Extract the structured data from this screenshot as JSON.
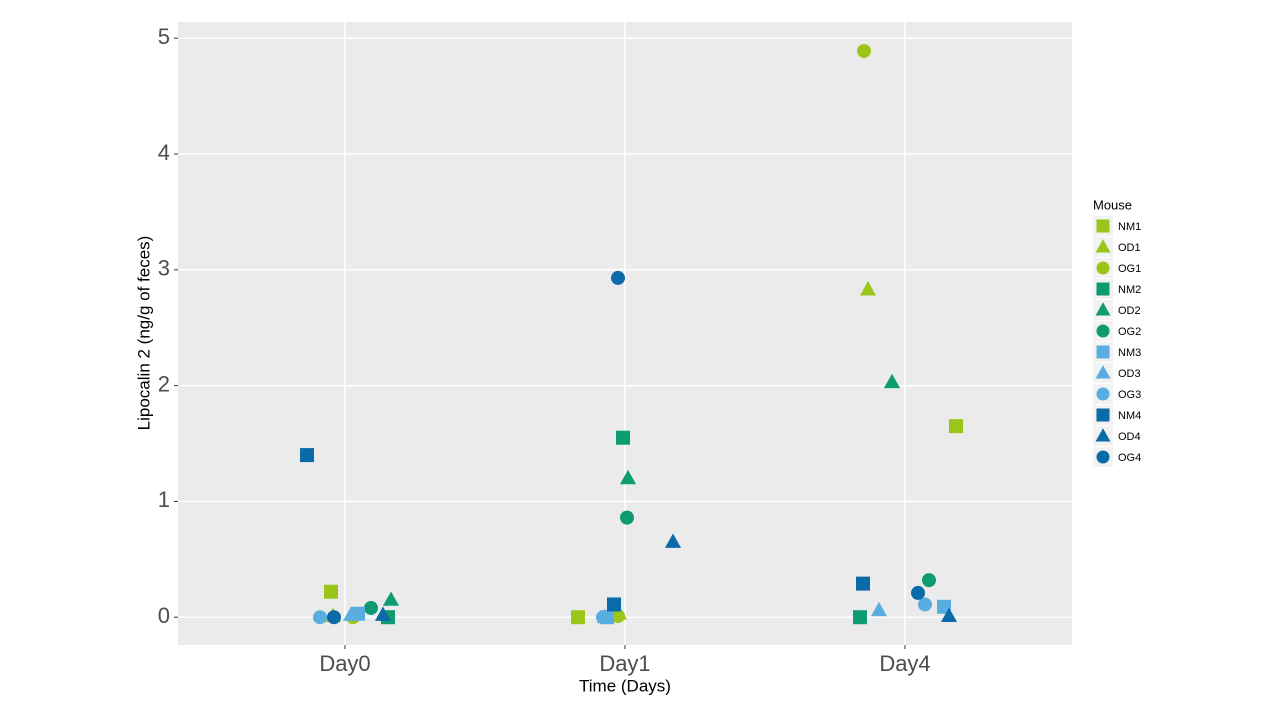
{
  "chart_data": {
    "type": "scatter",
    "x_label": "Time (Days)",
    "y_label": "Lipocalin 2 (ng/g of feces)",
    "categories": [
      "Day0",
      "Day1",
      "Day4"
    ],
    "ylim": [
      -0.24,
      5.14
    ],
    "yticks": [
      0,
      1,
      2,
      3,
      4,
      5
    ],
    "grid": true,
    "legend_title": "Mouse",
    "legend_position": "right",
    "series": [
      {
        "name": "NM1",
        "shape": "square",
        "color": "#99c619",
        "values": [
          0.22,
          0,
          1.65
        ]
      },
      {
        "name": "OD1",
        "shape": "triangle",
        "color": "#99c619",
        "values": [
          0.01,
          0.03,
          2.83
        ]
      },
      {
        "name": "OG1",
        "shape": "circle",
        "color": "#99c619",
        "values": [
          0,
          0.01,
          4.89
        ]
      },
      {
        "name": "NM2",
        "shape": "square",
        "color": "#0f9b72",
        "values": [
          0,
          1.55,
          0
        ]
      },
      {
        "name": "OD2",
        "shape": "triangle",
        "color": "#0f9b72",
        "values": [
          0.15,
          1.2,
          2.03
        ]
      },
      {
        "name": "OG2",
        "shape": "circle",
        "color": "#0f9b72",
        "values": [
          0.08,
          0.86,
          0.32
        ]
      },
      {
        "name": "NM3",
        "shape": "square",
        "color": "#5aade0",
        "values": [
          0.03,
          0,
          0.09
        ]
      },
      {
        "name": "OD3",
        "shape": "triangle",
        "color": "#5aade0",
        "values": [
          0.02,
          0,
          0.06
        ]
      },
      {
        "name": "OG3",
        "shape": "circle",
        "color": "#5aade0",
        "values": [
          0,
          0,
          0.11
        ]
      },
      {
        "name": "NM4",
        "shape": "square",
        "color": "#0b6aa8",
        "values": [
          1.4,
          0.11,
          0.29
        ]
      },
      {
        "name": "OD4",
        "shape": "triangle",
        "color": "#0b6aa8",
        "values": [
          0.02,
          0.65,
          0.01
        ]
      },
      {
        "name": "OG4",
        "shape": "circle",
        "color": "#0b6aa8",
        "values": [
          0,
          2.93,
          0.21
        ]
      }
    ]
  }
}
